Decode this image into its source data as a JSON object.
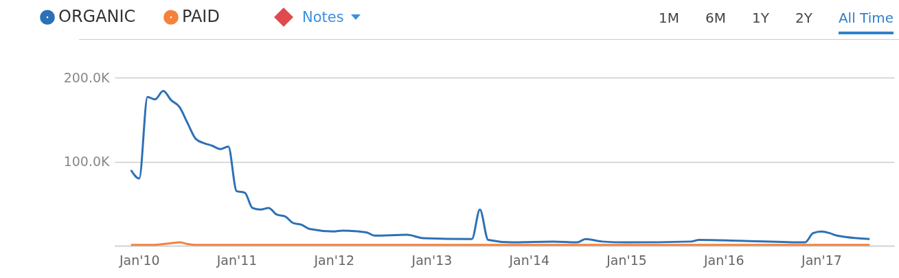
{
  "chart_data": {
    "type": "line",
    "x": [
      "2009-12",
      "2010-01",
      "2010-02",
      "2010-03",
      "2010-04",
      "2010-05",
      "2010-06",
      "2010-07",
      "2010-08",
      "2010-09",
      "2010-10",
      "2010-11",
      "2010-12",
      "2011-01",
      "2011-02",
      "2011-03",
      "2011-04",
      "2011-05",
      "2011-06",
      "2011-07",
      "2011-08",
      "2011-09",
      "2011-10",
      "2012-01",
      "2012-02",
      "2012-05",
      "2012-06",
      "2012-10",
      "2012-12",
      "2013-06",
      "2013-07",
      "2013-08",
      "2013-11",
      "2014-04",
      "2014-07",
      "2014-08",
      "2014-10",
      "2015-01",
      "2015-09",
      "2015-10",
      "2016-03",
      "2016-11",
      "2016-12",
      "2017-01",
      "2017-02",
      "2017-03",
      "2017-07"
    ],
    "series": [
      {
        "name": "ORGANIC",
        "color": "#2d70b6",
        "values": [
          90000,
          80000,
          177000,
          174000,
          184000,
          173000,
          165000,
          146000,
          127000,
          122000,
          119000,
          115000,
          118000,
          65000,
          63000,
          45000,
          43000,
          45000,
          37000,
          35000,
          27000,
          25000,
          20000,
          17000,
          18000,
          16000,
          12000,
          13000,
          9000,
          8000,
          43000,
          7000,
          4000,
          5000,
          4000,
          8000,
          5000,
          4000,
          5000,
          7000,
          6000,
          4000,
          15000,
          17000,
          15000,
          12000,
          8000
        ]
      },
      {
        "name": "PAID",
        "color": "#f5823a",
        "values": [
          1000,
          1000,
          1000,
          1000,
          2000,
          3000,
          4000,
          2000,
          1000,
          1000,
          1000,
          1000,
          1000,
          1000,
          1000,
          1000,
          1000,
          1000,
          1000,
          1000,
          1000,
          1000,
          1000,
          1000,
          1000,
          1000,
          1000,
          1000,
          1000,
          1000,
          1000,
          1000,
          1000,
          1000,
          1000,
          1000,
          1000,
          1000,
          1000,
          1000,
          1000,
          1000,
          1000,
          1000,
          1000,
          1000,
          1000
        ]
      }
    ],
    "xlim": [
      "2009-10",
      "2017-10"
    ],
    "xticks": [
      {
        "value": "2010-01",
        "label": "Jan'10"
      },
      {
        "value": "2011-01",
        "label": "Jan'11"
      },
      {
        "value": "2012-01",
        "label": "Jan'12"
      },
      {
        "value": "2013-01",
        "label": "Jan'13"
      },
      {
        "value": "2014-01",
        "label": "Jan'14"
      },
      {
        "value": "2015-01",
        "label": "Jan'15"
      },
      {
        "value": "2016-01",
        "label": "Jan'16"
      },
      {
        "value": "2017-01",
        "label": "Jan'17"
      }
    ],
    "ylim": [
      0,
      200000
    ],
    "yticks": [
      {
        "value": 0,
        "label": null
      },
      {
        "value": 100000,
        "label": "100.0K"
      },
      {
        "value": 200000,
        "label": "200.0K"
      }
    ],
    "grid": "y",
    "legend": "top left",
    "marker": "none",
    "line_style": "solid",
    "annotations": [
      "Notes",
      "1M",
      "6M",
      "1Y",
      "2Y",
      "All Time"
    ]
  }
}
